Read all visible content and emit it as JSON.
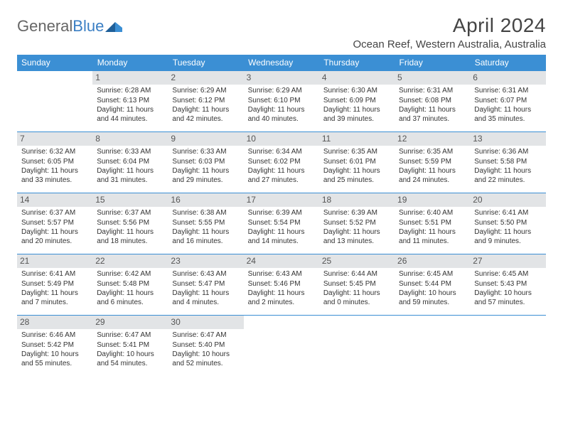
{
  "brand": {
    "part1": "General",
    "part2": "Blue"
  },
  "title": "April 2024",
  "subtitle": "Ocean Reef, Western Australia, Australia",
  "colors": {
    "header_bg": "#3b8fd4",
    "header_text": "#ffffff",
    "day_bg": "#e2e4e6",
    "border": "#3b8fd4",
    "title_color": "#444444",
    "text_color": "#333333",
    "logo_gray": "#666666",
    "logo_blue": "#3b7fc4"
  },
  "week_headers": [
    "Sunday",
    "Monday",
    "Tuesday",
    "Wednesday",
    "Thursday",
    "Friday",
    "Saturday"
  ],
  "weeks": [
    [
      {
        "empty": true
      },
      {
        "num": "1",
        "sunrise": "6:28 AM",
        "sunset": "6:13 PM",
        "daylight": "11 hours and 44 minutes."
      },
      {
        "num": "2",
        "sunrise": "6:29 AM",
        "sunset": "6:12 PM",
        "daylight": "11 hours and 42 minutes."
      },
      {
        "num": "3",
        "sunrise": "6:29 AM",
        "sunset": "6:10 PM",
        "daylight": "11 hours and 40 minutes."
      },
      {
        "num": "4",
        "sunrise": "6:30 AM",
        "sunset": "6:09 PM",
        "daylight": "11 hours and 39 minutes."
      },
      {
        "num": "5",
        "sunrise": "6:31 AM",
        "sunset": "6:08 PM",
        "daylight": "11 hours and 37 minutes."
      },
      {
        "num": "6",
        "sunrise": "6:31 AM",
        "sunset": "6:07 PM",
        "daylight": "11 hours and 35 minutes."
      }
    ],
    [
      {
        "num": "7",
        "sunrise": "6:32 AM",
        "sunset": "6:05 PM",
        "daylight": "11 hours and 33 minutes."
      },
      {
        "num": "8",
        "sunrise": "6:33 AM",
        "sunset": "6:04 PM",
        "daylight": "11 hours and 31 minutes."
      },
      {
        "num": "9",
        "sunrise": "6:33 AM",
        "sunset": "6:03 PM",
        "daylight": "11 hours and 29 minutes."
      },
      {
        "num": "10",
        "sunrise": "6:34 AM",
        "sunset": "6:02 PM",
        "daylight": "11 hours and 27 minutes."
      },
      {
        "num": "11",
        "sunrise": "6:35 AM",
        "sunset": "6:01 PM",
        "daylight": "11 hours and 25 minutes."
      },
      {
        "num": "12",
        "sunrise": "6:35 AM",
        "sunset": "5:59 PM",
        "daylight": "11 hours and 24 minutes."
      },
      {
        "num": "13",
        "sunrise": "6:36 AM",
        "sunset": "5:58 PM",
        "daylight": "11 hours and 22 minutes."
      }
    ],
    [
      {
        "num": "14",
        "sunrise": "6:37 AM",
        "sunset": "5:57 PM",
        "daylight": "11 hours and 20 minutes."
      },
      {
        "num": "15",
        "sunrise": "6:37 AM",
        "sunset": "5:56 PM",
        "daylight": "11 hours and 18 minutes."
      },
      {
        "num": "16",
        "sunrise": "6:38 AM",
        "sunset": "5:55 PM",
        "daylight": "11 hours and 16 minutes."
      },
      {
        "num": "17",
        "sunrise": "6:39 AM",
        "sunset": "5:54 PM",
        "daylight": "11 hours and 14 minutes."
      },
      {
        "num": "18",
        "sunrise": "6:39 AM",
        "sunset": "5:52 PM",
        "daylight": "11 hours and 13 minutes."
      },
      {
        "num": "19",
        "sunrise": "6:40 AM",
        "sunset": "5:51 PM",
        "daylight": "11 hours and 11 minutes."
      },
      {
        "num": "20",
        "sunrise": "6:41 AM",
        "sunset": "5:50 PM",
        "daylight": "11 hours and 9 minutes."
      }
    ],
    [
      {
        "num": "21",
        "sunrise": "6:41 AM",
        "sunset": "5:49 PM",
        "daylight": "11 hours and 7 minutes."
      },
      {
        "num": "22",
        "sunrise": "6:42 AM",
        "sunset": "5:48 PM",
        "daylight": "11 hours and 6 minutes."
      },
      {
        "num": "23",
        "sunrise": "6:43 AM",
        "sunset": "5:47 PM",
        "daylight": "11 hours and 4 minutes."
      },
      {
        "num": "24",
        "sunrise": "6:43 AM",
        "sunset": "5:46 PM",
        "daylight": "11 hours and 2 minutes."
      },
      {
        "num": "25",
        "sunrise": "6:44 AM",
        "sunset": "5:45 PM",
        "daylight": "11 hours and 0 minutes."
      },
      {
        "num": "26",
        "sunrise": "6:45 AM",
        "sunset": "5:44 PM",
        "daylight": "10 hours and 59 minutes."
      },
      {
        "num": "27",
        "sunrise": "6:45 AM",
        "sunset": "5:43 PM",
        "daylight": "10 hours and 57 minutes."
      }
    ],
    [
      {
        "num": "28",
        "sunrise": "6:46 AM",
        "sunset": "5:42 PM",
        "daylight": "10 hours and 55 minutes."
      },
      {
        "num": "29",
        "sunrise": "6:47 AM",
        "sunset": "5:41 PM",
        "daylight": "10 hours and 54 minutes."
      },
      {
        "num": "30",
        "sunrise": "6:47 AM",
        "sunset": "5:40 PM",
        "daylight": "10 hours and 52 minutes."
      },
      {
        "empty": true
      },
      {
        "empty": true
      },
      {
        "empty": true
      },
      {
        "empty": true
      }
    ]
  ],
  "labels": {
    "sunrise_prefix": "Sunrise: ",
    "sunset_prefix": "Sunset: ",
    "daylight_prefix": "Daylight: "
  }
}
